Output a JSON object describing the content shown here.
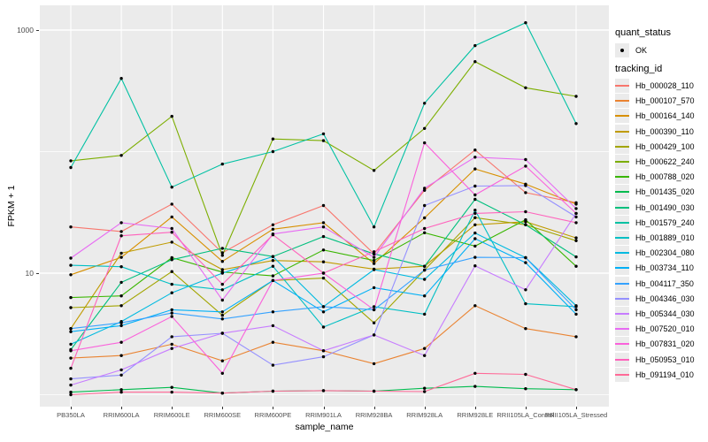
{
  "figure": {
    "bg": "#FFFFFF",
    "panel_bg": "#EBEBEB",
    "grid_color": "#FFFFFF",
    "tick_color": "#333333",
    "tick_text_color": "#4D4D4D",
    "point_color": "#000000"
  },
  "axes": {
    "x_title": "sample_name",
    "y_title": "FPKM + 1",
    "y_ticks": [
      {
        "label": "1000",
        "value": 1000
      },
      {
        "label": "10",
        "value": 10
      }
    ],
    "y_minor_breaks": [
      1,
      100
    ]
  },
  "legend": {
    "quant_title": "quant_status",
    "quant_items": [
      {
        "label": "OK",
        "marker": "point"
      }
    ],
    "tracking_title": "tracking_id"
  },
  "chart_data": {
    "type": "line",
    "title": "",
    "xlabel": "sample_name",
    "ylabel": "FPKM + 1",
    "y_scale": "log10",
    "grid": true,
    "legend_position": "right",
    "point_marker": "black-dot",
    "categories": [
      "PB350LA",
      "RRIM600LA",
      "RRIM600LE",
      "RRIM600SE",
      "RRIM600PE",
      "RRIM901LA",
      "RRIM928BA",
      "RRIM928LA",
      "RRIM928LE",
      "RRII105LA_Control",
      "RRII105LA_Stressed"
    ],
    "series": [
      {
        "name": "Hb_000028_110",
        "color": "#F8766D",
        "values": [
          24,
          22,
          37,
          14.7,
          25,
          36,
          14.4,
          48,
          103,
          46,
          38
        ]
      },
      {
        "name": "Hb_000107_570",
        "color": "#EA8331",
        "values": [
          2.0,
          2.1,
          2.6,
          1.9,
          2.7,
          2.3,
          1.8,
          2.4,
          5.4,
          3.5,
          3.0
        ]
      },
      {
        "name": "Hb_000164_140",
        "color": "#D89000",
        "values": [
          9.7,
          13.5,
          29,
          12.5,
          23,
          26,
          12,
          28.5,
          72,
          54,
          37
        ]
      },
      {
        "name": "Hb_000390_110",
        "color": "#C09B00",
        "values": [
          3.5,
          14.6,
          18,
          10.7,
          12.7,
          12.4,
          10.8,
          11.4,
          25,
          26.5,
          19.5
        ]
      },
      {
        "name": "Hb_000429_100",
        "color": "#A3A500",
        "values": [
          5.2,
          5.4,
          10.3,
          4.5,
          8.7,
          9.1,
          3.9,
          10.6,
          28.6,
          25,
          18.5
        ]
      },
      {
        "name": "Hb_000622_240",
        "color": "#7CAE00",
        "values": [
          84,
          93,
          195,
          14,
          127,
          123,
          70,
          155,
          550,
          335,
          285
        ]
      },
      {
        "name": "Hb_000788_020",
        "color": "#39B600",
        "values": [
          6.3,
          6.5,
          13.4,
          10.2,
          9.5,
          15.5,
          12.7,
          21.5,
          16.7,
          27.5,
          11.4
        ]
      },
      {
        "name": "Hb_001435_020",
        "color": "#00BB4E",
        "values": [
          1.05,
          1.1,
          1.15,
          1.03,
          1.07,
          1.08,
          1.07,
          1.13,
          1.17,
          1.12,
          1.1
        ]
      },
      {
        "name": "Hb_001490_030",
        "color": "#00BF7D",
        "values": [
          2.35,
          8.4,
          12.9,
          16,
          13.7,
          20,
          14.4,
          11.4,
          40.5,
          25,
          13.6
        ]
      },
      {
        "name": "Hb_001579_240",
        "color": "#00C1A3",
        "values": [
          74,
          400,
          51,
          79,
          100,
          140,
          24,
          250,
          745,
          1150,
          170
        ]
      },
      {
        "name": "Hb_001889_010",
        "color": "#00BFC4",
        "values": [
          11.6,
          11.3,
          8.1,
          7.3,
          11.4,
          3.6,
          5.3,
          4.6,
          33,
          5.6,
          5.3
        ]
      },
      {
        "name": "Hb_002304_080",
        "color": "#00BAE0",
        "values": [
          2.6,
          4.0,
          6.9,
          10,
          13.7,
          5.3,
          10.7,
          8.9,
          21.4,
          13.4,
          5.4
        ]
      },
      {
        "name": "Hb_003734_110",
        "color": "#00B0F6",
        "values": [
          3.3,
          3.7,
          5.0,
          4.8,
          8.7,
          4.8,
          7.6,
          6.5,
          19.2,
          12.2,
          4.6
        ]
      },
      {
        "name": "Hb_004117_350",
        "color": "#35A2FF",
        "values": [
          3.5,
          3.9,
          4.7,
          4.2,
          4.8,
          5.3,
          5.0,
          10.6,
          13.5,
          13.4,
          5.0
        ]
      },
      {
        "name": "Hb_004346_030",
        "color": "#9590FF",
        "values": [
          1.35,
          1.45,
          3.0,
          3.2,
          1.75,
          2.05,
          3.1,
          36,
          52,
          52.6,
          29
        ]
      },
      {
        "name": "Hb_005344_030",
        "color": "#C77CFF",
        "values": [
          1.2,
          1.6,
          2.4,
          3.2,
          3.7,
          2.3,
          3.1,
          2.1,
          11.5,
          7.3,
          31
        ]
      },
      {
        "name": "Hb_007520_010",
        "color": "#E76BF3",
        "values": [
          13.3,
          26,
          23.3,
          6.0,
          21,
          24,
          13.5,
          50,
          90,
          86,
          34
        ]
      },
      {
        "name": "Hb_007831_020",
        "color": "#FA62DB",
        "values": [
          2.3,
          2.7,
          4.4,
          1.5,
          8.7,
          10,
          5.0,
          118,
          44,
          76,
          31
        ]
      },
      {
        "name": "Hb_050953_010",
        "color": "#FF62BC",
        "values": [
          1.65,
          20.3,
          21.7,
          8.1,
          20.7,
          10,
          15,
          23.3,
          31,
          32,
          26
        ]
      },
      {
        "name": "Hb_091194_010",
        "color": "#FF6A98",
        "values": [
          1.0,
          1.05,
          1.05,
          1.03,
          1.07,
          1.08,
          1.07,
          1.06,
          1.5,
          1.47,
          1.1
        ]
      }
    ]
  }
}
